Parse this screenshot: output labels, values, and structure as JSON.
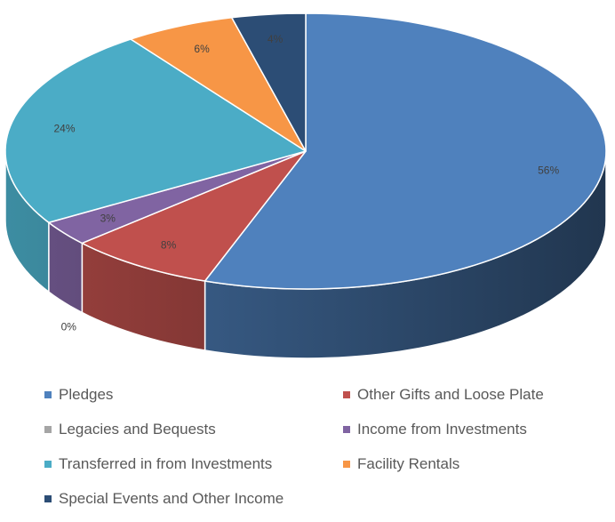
{
  "chart_data": {
    "type": "pie",
    "style": "3d",
    "title": "",
    "legend_position": "bottom",
    "series": [
      {
        "name": "Pledges",
        "value": 56,
        "label": "56%",
        "color": "#4F81BD"
      },
      {
        "name": "Other Gifts and Loose Plate",
        "value": 8,
        "label": "8%",
        "color": "#C0504D"
      },
      {
        "name": "Legacies and Bequests",
        "value": 0,
        "label": "0%",
        "color": "#A5A5A5"
      },
      {
        "name": "Income from Investments",
        "value": 3,
        "label": "3%",
        "color": "#8064A2"
      },
      {
        "name": "Transferred in from Investments",
        "value": 24,
        "label": "24%",
        "color": "#4BACC6"
      },
      {
        "name": "Facility Rentals",
        "value": 6,
        "label": "6%",
        "color": "#F79646"
      },
      {
        "name": "Special Events and Other Income",
        "value": 4,
        "label": "4%",
        "color": "#2C4D75"
      }
    ]
  }
}
